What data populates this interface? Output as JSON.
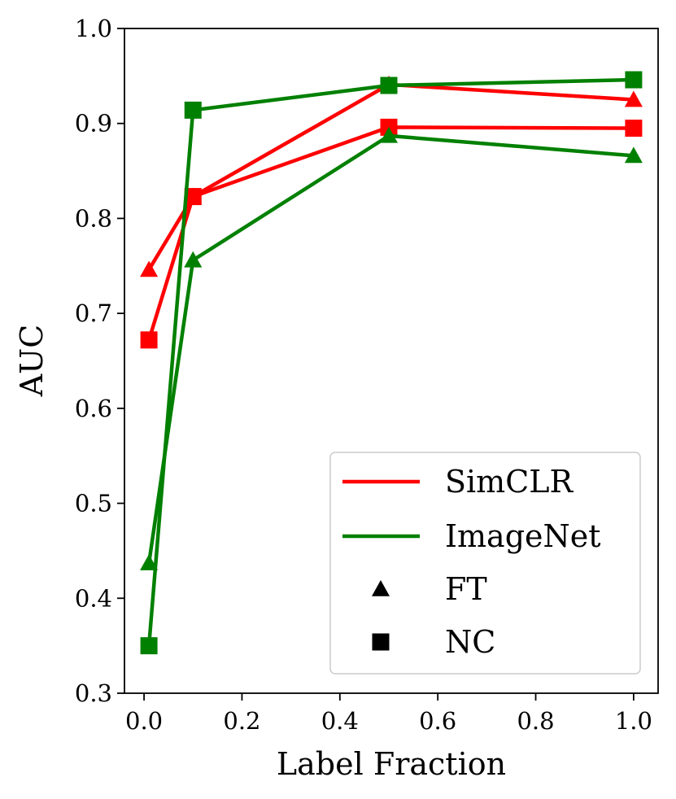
{
  "chart_data": {
    "type": "line",
    "xlabel": "Label Fraction",
    "ylabel": "AUC",
    "xlim": [
      -0.04,
      1.05
    ],
    "ylim": [
      0.3,
      1.0
    ],
    "xticks": [
      0.0,
      0.2,
      0.4,
      0.6,
      0.8,
      1.0
    ],
    "xtick_labels": [
      "0.0",
      "0.2",
      "0.4",
      "0.6",
      "0.8",
      "1.0"
    ],
    "yticks": [
      0.3,
      0.4,
      0.5,
      0.6,
      0.7,
      0.8,
      0.9,
      1.0
    ],
    "ytick_labels": [
      "0.3",
      "0.4",
      "0.5",
      "0.6",
      "0.7",
      "0.8",
      "0.9",
      "1.0"
    ],
    "grid": false,
    "legend_position": "bottom-right",
    "x": [
      0.01,
      0.1,
      0.5,
      1.0
    ],
    "series": [
      {
        "name": "SimCLR FT",
        "model": "SimCLR",
        "method": "FT",
        "color": "#ff0000",
        "marker": "triangle",
        "values": [
          0.746,
          0.823,
          0.941,
          0.925
        ]
      },
      {
        "name": "SimCLR NC",
        "model": "SimCLR",
        "method": "NC",
        "color": "#ff0000",
        "marker": "square",
        "values": [
          0.672,
          0.823,
          0.896,
          0.895
        ]
      },
      {
        "name": "ImageNet FT",
        "model": "ImageNet",
        "method": "FT",
        "color": "#008000",
        "marker": "triangle",
        "values": [
          0.437,
          0.756,
          0.887,
          0.866
        ]
      },
      {
        "name": "ImageNet NC",
        "model": "ImageNet",
        "method": "NC",
        "color": "#008000",
        "marker": "square",
        "values": [
          0.35,
          0.914,
          0.94,
          0.946
        ]
      }
    ],
    "legend": [
      {
        "label": "SimCLR",
        "kind": "line",
        "color": "#ff0000"
      },
      {
        "label": "ImageNet",
        "kind": "line",
        "color": "#008000"
      },
      {
        "label": "FT",
        "kind": "marker",
        "marker": "triangle",
        "color": "#000000"
      },
      {
        "label": "NC",
        "kind": "marker",
        "marker": "square",
        "color": "#000000"
      }
    ]
  }
}
